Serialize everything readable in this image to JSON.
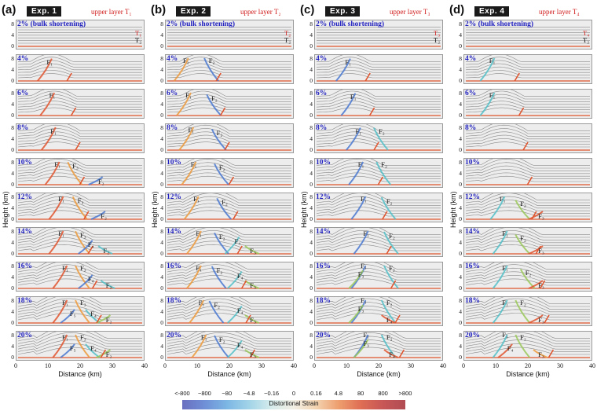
{
  "columns": [
    {
      "panel": "(a)",
      "exp": "Exp. 1",
      "upper": "upper layer T₁",
      "pct": [
        "2% (bulk shortening)",
        "4%",
        "6%",
        "8%",
        "10%",
        "12%",
        "14%",
        "16%",
        "18%",
        "20%"
      ],
      "first_row_labels": [
        "T₁",
        "T₂"
      ],
      "faults": [
        [],
        [
          [
            "F₁",
            0.24,
            0.35
          ]
        ],
        [
          [
            "F₁",
            0.26,
            0.3
          ]
        ],
        [
          [
            "F₁",
            0.27,
            0.33
          ]
        ],
        [
          [
            "F₁",
            0.3,
            0.3
          ],
          [
            "F₃",
            0.44,
            0.34
          ],
          [
            "F₂",
            0.64,
            0.86
          ]
        ],
        [
          [
            "F₁",
            0.33,
            0.3
          ],
          [
            "F₃",
            0.48,
            0.34
          ],
          [
            "F₂",
            0.66,
            0.86
          ]
        ],
        [
          [
            "F₁",
            0.33,
            0.3
          ],
          [
            "F₃",
            0.5,
            0.34
          ],
          [
            "F₄",
            0.56,
            0.66
          ],
          [
            "F₂",
            0.68,
            0.86
          ]
        ],
        [
          [
            "F₁",
            0.36,
            0.3
          ],
          [
            "F₃",
            0.5,
            0.3
          ],
          [
            "F₄",
            0.56,
            0.66
          ],
          [
            "F₂",
            0.7,
            0.86
          ]
        ],
        [
          [
            "F₁",
            0.36,
            0.3
          ],
          [
            "F₃",
            0.5,
            0.3
          ],
          [
            "F₅",
            0.42,
            0.66
          ],
          [
            "F₄",
            0.58,
            0.66
          ],
          [
            "F₂",
            0.7,
            0.86
          ]
        ],
        [
          [
            "F₁",
            0.36,
            0.3
          ],
          [
            "F₃",
            0.5,
            0.3
          ],
          [
            "F₅",
            0.42,
            0.66
          ],
          [
            "F₄",
            0.58,
            0.66
          ],
          [
            "F₂",
            0.7,
            0.86
          ]
        ]
      ]
    },
    {
      "panel": "(b)",
      "exp": "Exp. 2",
      "upper": "upper layer T₂",
      "pct": [
        "2% (bulk shortening)",
        "4%",
        "6%",
        "8%",
        "10%",
        "12%",
        "14%",
        "16%",
        "18%",
        "20%"
      ],
      "first_row_labels": [
        "T₂",
        "T₂"
      ],
      "faults": [
        [],
        [
          [
            "F₁",
            0.14,
            0.3
          ],
          [
            "F₂",
            0.34,
            0.3
          ]
        ],
        [
          [
            "F₁",
            0.16,
            0.3
          ],
          [
            "F₂",
            0.36,
            0.4
          ]
        ],
        [
          [
            "F₁",
            0.18,
            0.3
          ],
          [
            "F₂",
            0.4,
            0.4
          ]
        ],
        [
          [
            "F₁",
            0.2,
            0.3
          ],
          [
            "F₂",
            0.42,
            0.4
          ]
        ],
        [
          [
            "F₁",
            0.22,
            0.3
          ],
          [
            "F₂",
            0.44,
            0.4
          ]
        ],
        [
          [
            "F₁",
            0.24,
            0.3
          ],
          [
            "F₂",
            0.42,
            0.4
          ],
          [
            "F₄",
            0.54,
            0.54
          ],
          [
            "F₃",
            0.66,
            0.86
          ]
        ],
        [
          [
            "F₁",
            0.24,
            0.3
          ],
          [
            "F₂",
            0.4,
            0.36
          ],
          [
            "F₄",
            0.56,
            0.54
          ],
          [
            "F₃",
            0.66,
            0.86
          ]
        ],
        [
          [
            "F₁",
            0.26,
            0.3
          ],
          [
            "F₂",
            0.38,
            0.36
          ],
          [
            "F₄",
            0.56,
            0.54
          ],
          [
            "F₃",
            0.66,
            0.86
          ]
        ],
        [
          [
            "F₁",
            0.28,
            0.3
          ],
          [
            "F₂",
            0.42,
            0.36
          ],
          [
            "F₄",
            0.56,
            0.54
          ],
          [
            "F₃",
            0.66,
            0.86
          ]
        ]
      ]
    },
    {
      "panel": "(c)",
      "exp": "Exp. 3",
      "upper": "upper layer T₃",
      "pct": [
        "2% (bulk shortening)",
        "4%",
        "6%",
        "8%",
        "10%",
        "12%",
        "14%",
        "16%",
        "18%",
        "20%"
      ],
      "first_row_labels": [
        "T₃",
        "T₂"
      ],
      "faults": [
        [],
        [
          [
            "F₁",
            0.24,
            0.35
          ]
        ],
        [
          [
            "F₁",
            0.28,
            0.35
          ]
        ],
        [
          [
            "F₁",
            0.32,
            0.35
          ],
          [
            "F₂",
            0.5,
            0.35
          ]
        ],
        [
          [
            "F₁",
            0.34,
            0.3
          ],
          [
            "F₂",
            0.52,
            0.3
          ]
        ],
        [
          [
            "F₁",
            0.36,
            0.3
          ],
          [
            "F₂",
            0.56,
            0.36
          ]
        ],
        [
          [
            "F₁",
            0.38,
            0.3
          ],
          [
            "F₂",
            0.58,
            0.36
          ]
        ],
        [
          [
            "F₁",
            0.36,
            0.22
          ],
          [
            "F₂",
            0.58,
            0.3
          ],
          [
            "F₃",
            0.34,
            0.5
          ]
        ],
        [
          [
            "F₁",
            0.36,
            0.22
          ],
          [
            "F₂",
            0.56,
            0.3
          ],
          [
            "F₃",
            0.34,
            0.5
          ],
          [
            "F₄",
            0.56,
            0.86
          ]
        ],
        [
          [
            "F₁",
            0.38,
            0.22
          ],
          [
            "F₂",
            0.56,
            0.3
          ],
          [
            "F₃",
            0.38,
            0.5
          ],
          [
            "F₄",
            0.58,
            0.86
          ]
        ]
      ]
    },
    {
      "panel": "(d)",
      "exp": "Exp. 4",
      "upper": "upper layer T₄",
      "pct": [
        "2% (bulk shortening)",
        "4%",
        "6%",
        "8%",
        "10%",
        "12%",
        "14%",
        "16%",
        "18%",
        "20%"
      ],
      "first_row_labels": [
        "T₄",
        "T₂"
      ],
      "faults": [
        [],
        [
          [
            "F₁",
            0.2,
            0.3
          ]
        ],
        [
          [
            "F₁",
            0.2,
            0.3
          ]
        ],
        [],
        [],
        [
          [
            "F₁",
            0.28,
            0.3
          ],
          [
            "F₂",
            0.44,
            0.46
          ],
          [
            "F₃",
            0.58,
            0.86
          ]
        ],
        [
          [
            "F₁",
            0.3,
            0.3
          ],
          [
            "F₂",
            0.44,
            0.46
          ],
          [
            "F₃",
            0.58,
            0.86
          ]
        ],
        [
          [
            "F₁",
            0.3,
            0.3
          ],
          [
            "F₂",
            0.48,
            0.46
          ],
          [
            "F₃",
            0.58,
            0.86
          ]
        ],
        [
          [
            "F₁",
            0.3,
            0.3
          ],
          [
            "F₂",
            0.44,
            0.3
          ],
          [
            "F₃",
            0.58,
            0.86
          ]
        ],
        [
          [
            "F₁",
            0.3,
            0.22
          ],
          [
            "F₂",
            0.44,
            0.3
          ],
          [
            "F₄",
            0.34,
            0.66
          ],
          [
            "F₃",
            0.58,
            0.86
          ]
        ]
      ]
    }
  ],
  "axes": {
    "yticks": [
      "8",
      "4",
      "0"
    ],
    "xticks": [
      "0",
      "10",
      "20",
      "30",
      "40"
    ],
    "xlabel": "Distance (km)",
    "ylabel": "Height (km)"
  },
  "colorbar": {
    "ticks": [
      "<-800",
      "−800",
      "−80",
      "−4.8",
      "−0.16",
      "0",
      "0.16",
      "4.8",
      "80",
      "800",
      ">800"
    ],
    "label": "Distortional Strain",
    "colors": [
      "#6a6fbf",
      "#6f8fd6",
      "#7cb6e4",
      "#a2d4e8",
      "#d6ecec",
      "#f2efe4",
      "#f3d3b0",
      "#ee9f6f",
      "#df6e54",
      "#c75656",
      "#b04c54"
    ]
  },
  "style": {
    "panel_bg": "#ededed",
    "layer_line": "#8a8a8a",
    "strain_red": "#e0552f",
    "strain_orange": "#ec9a3c",
    "strain_blue": "#4a78d0",
    "strain_cyan": "#53c0c8",
    "strain_green": "#9ac85a"
  }
}
